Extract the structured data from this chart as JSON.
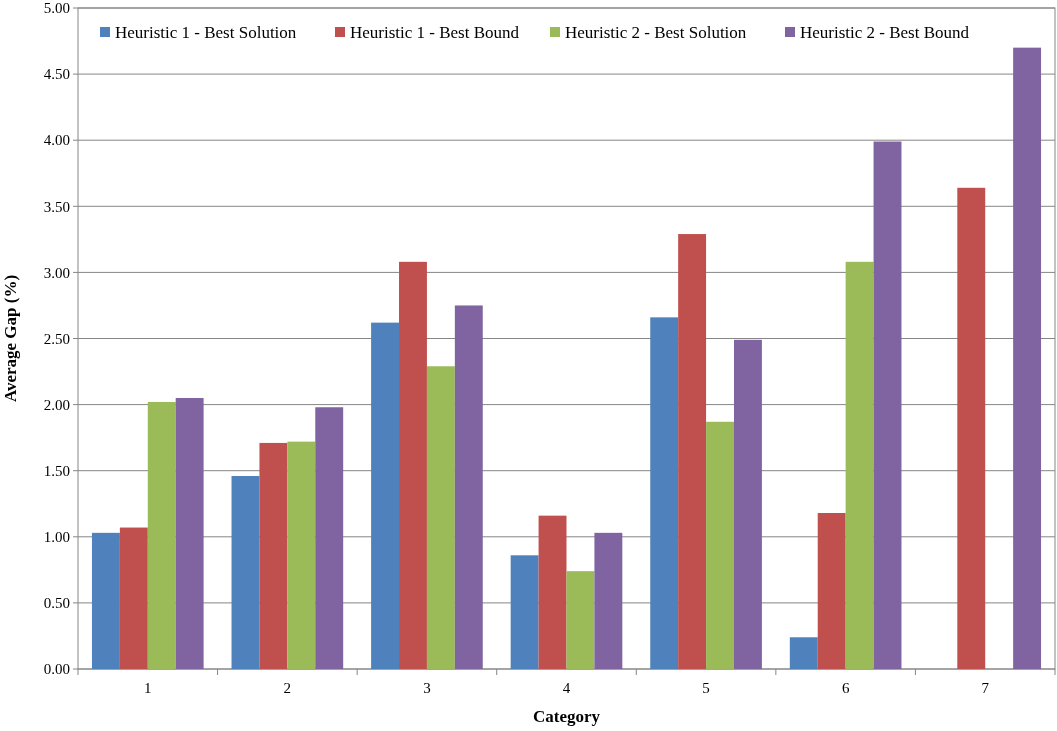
{
  "chart_data": {
    "type": "bar",
    "xlabel": "Category",
    "ylabel": "Average Gap (%)",
    "categories": [
      "1",
      "2",
      "3",
      "4",
      "5",
      "6",
      "7"
    ],
    "series": [
      {
        "name": "Heuristic 1 - Best Solution",
        "color": "#4f81bd",
        "values": [
          1.03,
          1.46,
          2.62,
          0.86,
          2.66,
          0.24,
          null
        ]
      },
      {
        "name": "Heuristic 1 - Best Bound",
        "color": "#c0504d",
        "values": [
          1.07,
          1.71,
          3.08,
          1.16,
          3.29,
          1.18,
          3.64
        ]
      },
      {
        "name": "Heuristic 2 - Best Solution",
        "color": "#9bbb59",
        "values": [
          2.02,
          1.72,
          2.29,
          0.74,
          1.87,
          3.08,
          null
        ]
      },
      {
        "name": "Heuristic 2 - Best Bound",
        "color": "#8064a2",
        "values": [
          2.05,
          1.98,
          2.75,
          1.03,
          2.49,
          3.99,
          4.7
        ]
      }
    ],
    "ylim": [
      0,
      5
    ],
    "yticks": [
      {
        "value": 0,
        "label": "0.00"
      },
      {
        "value": 0.5,
        "label": "0.50"
      },
      {
        "value": 1,
        "label": "1.00"
      },
      {
        "value": 1.5,
        "label": "1.50"
      },
      {
        "value": 2,
        "label": "2.00"
      },
      {
        "value": 2.5,
        "label": "2.50"
      },
      {
        "value": 3,
        "label": "3.00"
      },
      {
        "value": 3.5,
        "label": "3.50"
      },
      {
        "value": 4,
        "label": "4.00"
      },
      {
        "value": 4.5,
        "label": "4.50"
      },
      {
        "value": 5,
        "label": "5.00"
      }
    ],
    "grid": "y",
    "legend": "top"
  }
}
